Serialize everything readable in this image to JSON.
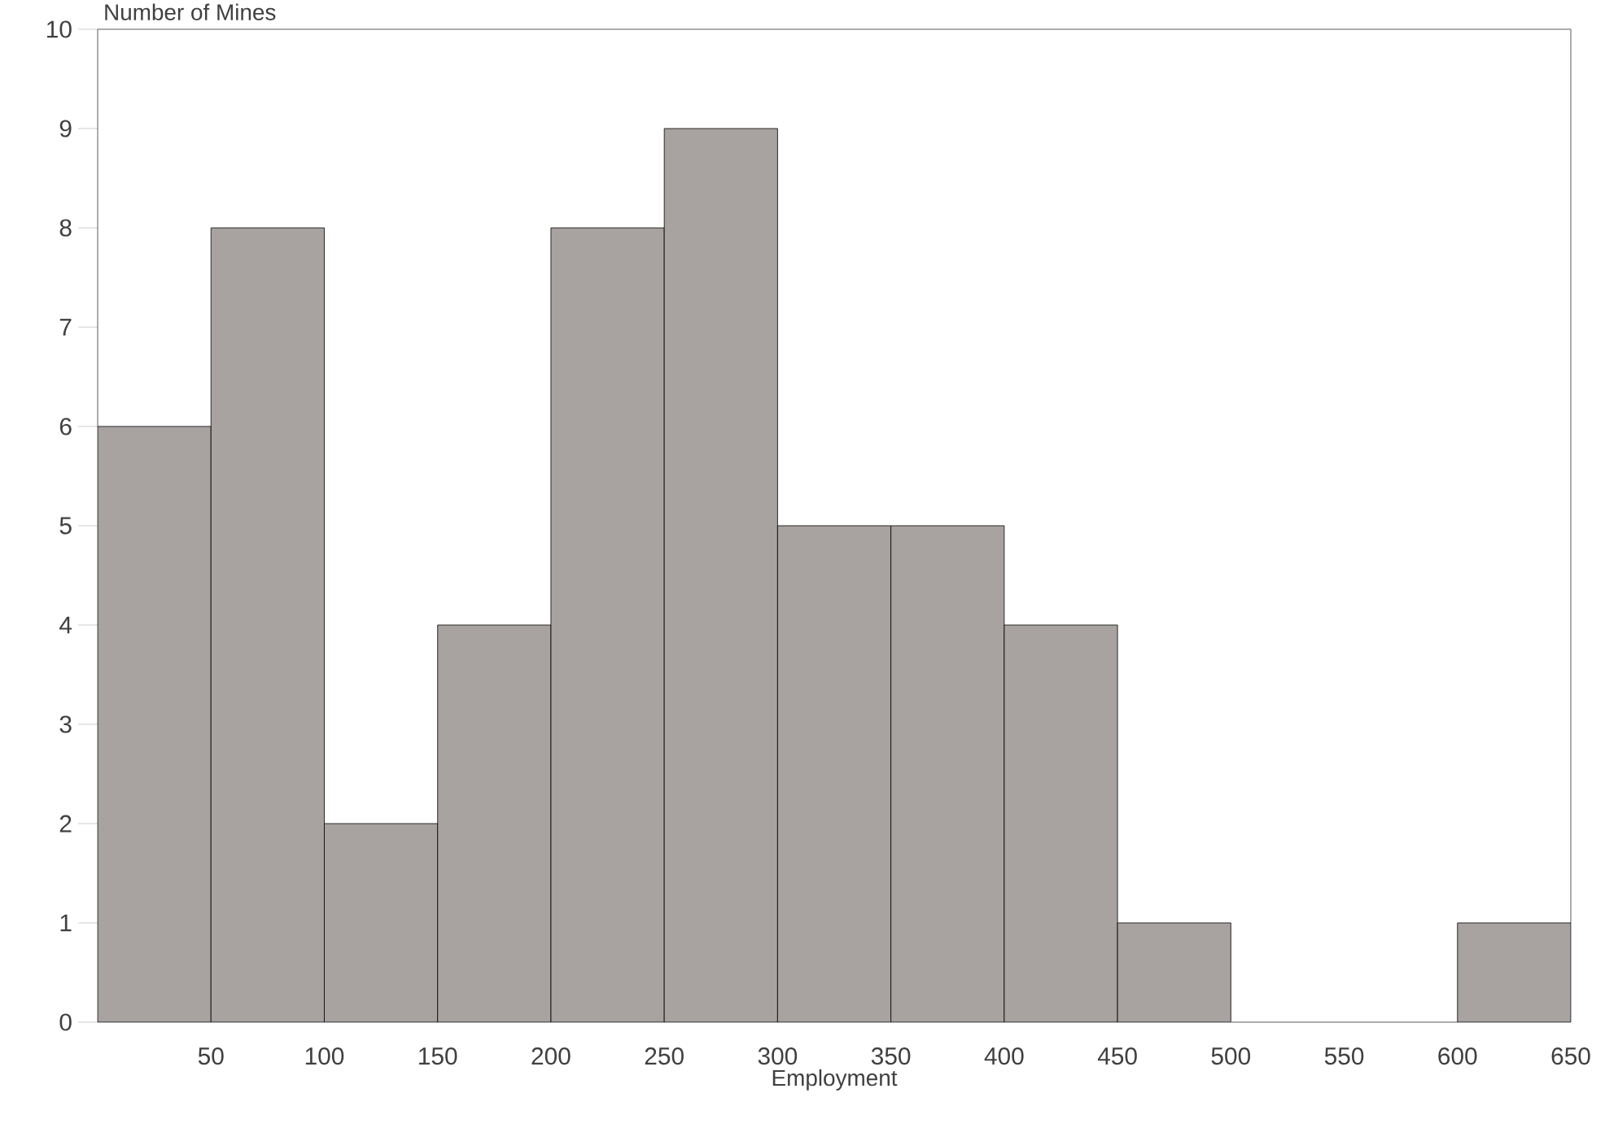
{
  "chart_data": {
    "type": "histogram",
    "xlabel": "Employment",
    "ylabel": "Number of Mines",
    "bins": [
      0,
      50,
      100,
      150,
      200,
      250,
      300,
      350,
      400,
      450,
      500,
      550,
      600,
      650
    ],
    "values": [
      6,
      8,
      2,
      4,
      8,
      9,
      5,
      5,
      4,
      1,
      0,
      0,
      1
    ],
    "color": "#a8a2a0",
    "xlim": [
      0,
      650
    ],
    "xticks": [
      50,
      100,
      150,
      200,
      250,
      300,
      350,
      400,
      450,
      500,
      550,
      600,
      650
    ],
    "ylim": [
      0,
      10
    ],
    "yticks": [
      0,
      1,
      2,
      3,
      4,
      5,
      6,
      7,
      8,
      9,
      10
    ],
    "grid": false
  }
}
